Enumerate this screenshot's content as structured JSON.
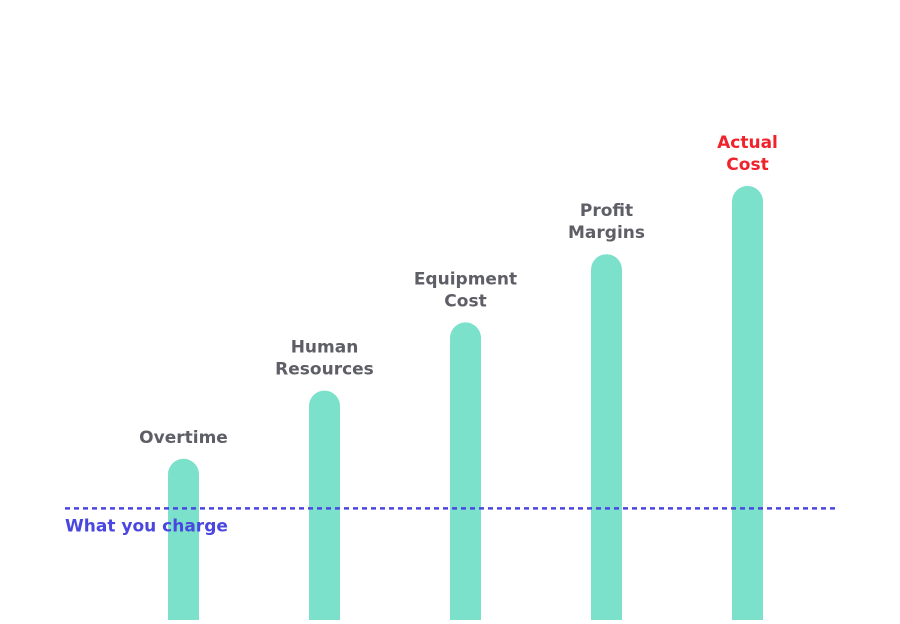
{
  "chart_data": {
    "type": "bar",
    "categories": [
      "Overtime",
      "Human Resources",
      "Equipment Cost",
      "Profit Margins",
      "Actual Cost"
    ],
    "values": [
      26,
      37,
      48,
      59,
      70
    ],
    "ylim": [
      0,
      100
    ],
    "grid": false,
    "legend": "none",
    "reference_line": {
      "label": "What you charge",
      "value": 18
    },
    "highlight_category": "Actual Cost",
    "colors": {
      "bar": "#7be1cb",
      "label": "#5e5e67",
      "highlight_label": "#f0222b",
      "reference_line": "#4a46e0"
    }
  }
}
